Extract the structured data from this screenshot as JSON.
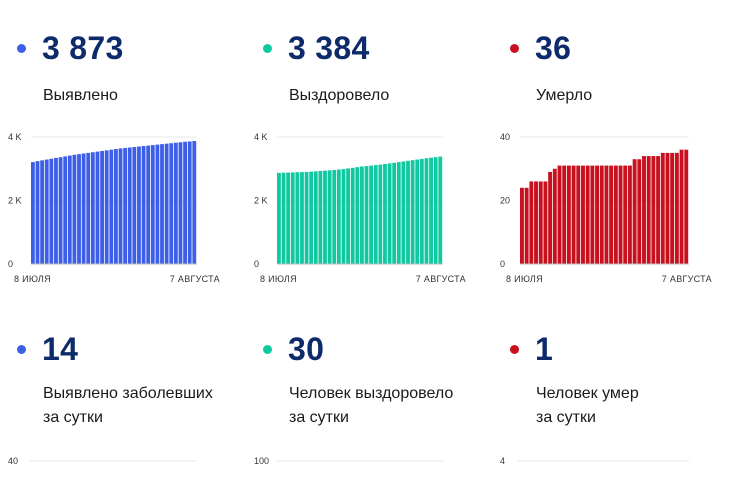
{
  "colors": {
    "blue": "#3d5fe8",
    "teal": "#10c9a1",
    "red": "#c8101e",
    "title": "#0d2a6b"
  },
  "panels": [
    {
      "value": "3 873",
      "label": "Выявлено",
      "dot_color": "#3d5fe8",
      "chart_data": {
        "type": "bar",
        "color": "#3d5fe8",
        "y_ticks": [
          "4 K",
          "2 K",
          "0"
        ],
        "ylim": [
          0,
          4000
        ],
        "x_ticks": [
          "8 ИЮЛЯ",
          "7 АВГУСТА"
        ],
        "values": [
          3210,
          3240,
          3265,
          3290,
          3315,
          3340,
          3365,
          3390,
          3415,
          3440,
          3460,
          3480,
          3500,
          3520,
          3540,
          3560,
          3580,
          3600,
          3620,
          3640,
          3655,
          3670,
          3685,
          3700,
          3715,
          3730,
          3745,
          3760,
          3775,
          3790,
          3805,
          3820,
          3835,
          3850,
          3860,
          3873
        ]
      }
    },
    {
      "value": "3 384",
      "label": "Выздоровело",
      "dot_color": "#10c9a1",
      "chart_data": {
        "type": "bar",
        "color": "#10c9a1",
        "y_ticks": [
          "4 K",
          "2 K",
          "0"
        ],
        "ylim": [
          0,
          4000
        ],
        "x_ticks": [
          "8 ИЮЛЯ",
          "7 АВГУСТА"
        ],
        "values": [
          2870,
          2875,
          2880,
          2885,
          2890,
          2895,
          2900,
          2910,
          2920,
          2930,
          2940,
          2950,
          2960,
          2975,
          2990,
          3010,
          3030,
          3050,
          3070,
          3085,
          3100,
          3115,
          3130,
          3150,
          3170,
          3190,
          3210,
          3230,
          3250,
          3270,
          3290,
          3310,
          3330,
          3350,
          3365,
          3384
        ]
      }
    },
    {
      "value": "36",
      "label": "Умерло",
      "dot_color": "#c8101e",
      "chart_data": {
        "type": "bar",
        "color": "#c8101e",
        "y_ticks": [
          "40",
          "20",
          "0"
        ],
        "ylim": [
          0,
          40
        ],
        "x_ticks": [
          "8 ИЮЛЯ",
          "7 АВГУСТА"
        ],
        "values": [
          24,
          24,
          26,
          26,
          26,
          26,
          29,
          30,
          31,
          31,
          31,
          31,
          31,
          31,
          31,
          31,
          31,
          31,
          31,
          31,
          31,
          31,
          31,
          31,
          33,
          33,
          34,
          34,
          34,
          34,
          35,
          35,
          35,
          35,
          36,
          36
        ]
      }
    },
    {
      "value": "14",
      "label_line1": "Выявлено заболевших",
      "label_line2": "за сутки",
      "dot_color": "#3d5fe8",
      "axis_top": "40"
    },
    {
      "value": "30",
      "label_line1": "Человек выздоровело",
      "label_line2": "за сутки",
      "dot_color": "#10c9a1",
      "axis_top": "100"
    },
    {
      "value": "1",
      "label_line1": "Человек умер",
      "label_line2": "за сутки",
      "dot_color": "#c8101e",
      "axis_top": "4"
    }
  ]
}
